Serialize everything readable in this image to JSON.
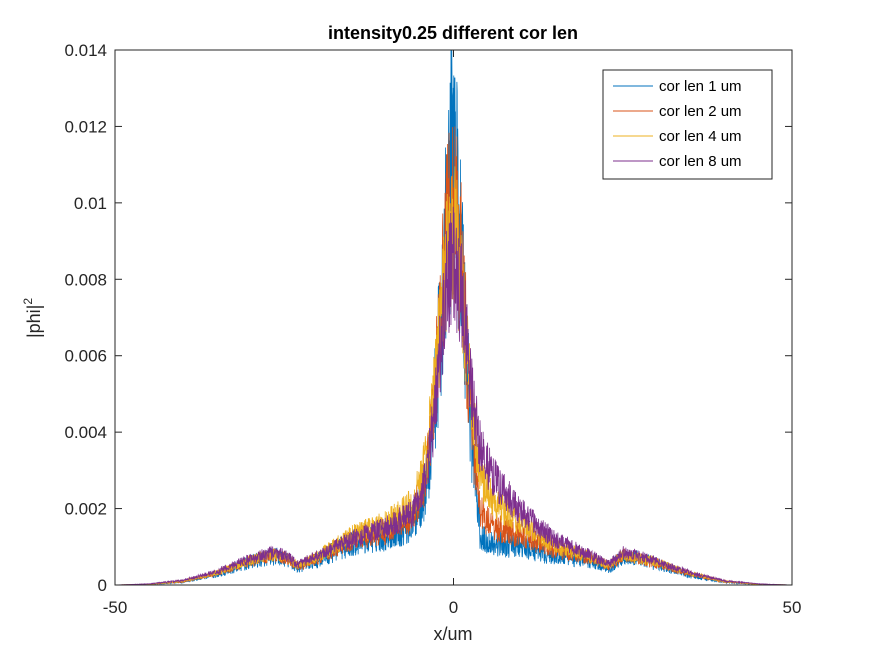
{
  "chart_data": {
    "type": "line",
    "title": "intensity0.25 different cor len",
    "xlabel": "x/um",
    "ylabel_main": "|phi|",
    "ylabel_sup": "2",
    "xlim": [
      -50,
      50
    ],
    "ylim": [
      0,
      0.014
    ],
    "xticks": [
      -50,
      0,
      50
    ],
    "xtick_labels": [
      "-50",
      "0",
      "50"
    ],
    "yticks": [
      0,
      0.002,
      0.004,
      0.006,
      0.008,
      0.01,
      0.012,
      0.014
    ],
    "ytick_labels": [
      "0",
      "0.002",
      "0.004",
      "0.006",
      "0.008",
      "0.01",
      "0.012",
      "0.014"
    ],
    "legend_position": "top-right",
    "grid": false,
    "series": [
      {
        "name": "cor len 1 um",
        "color": "#0072BD",
        "noise": 0.32,
        "x": [
          -50,
          -45,
          -40,
          -35,
          -30,
          -27,
          -25,
          -23,
          -20,
          -15,
          -10,
          -6,
          -4,
          -3,
          -2,
          -1,
          0,
          1,
          2,
          3,
          4,
          6,
          10,
          15,
          20,
          23,
          25,
          27,
          30,
          35,
          40,
          45,
          50
        ],
        "y": [
          0,
          2e-05,
          8e-05,
          0.00028,
          0.0006,
          0.00075,
          0.0007,
          0.00045,
          0.00065,
          0.0011,
          0.0013,
          0.0016,
          0.0026,
          0.0042,
          0.0065,
          0.0095,
          0.0113,
          0.0092,
          0.0058,
          0.0031,
          0.0012,
          0.0011,
          0.001,
          0.00075,
          0.00065,
          0.00045,
          0.00075,
          0.0007,
          0.00055,
          0.00025,
          8e-05,
          2e-05,
          0
        ]
      },
      {
        "name": "cor len 2 um",
        "color": "#D95319",
        "noise": 0.25,
        "x": [
          -50,
          -45,
          -40,
          -35,
          -30,
          -27,
          -25,
          -23,
          -20,
          -15,
          -10,
          -6,
          -4,
          -3,
          -2,
          -1,
          0,
          1,
          2,
          3,
          4,
          6,
          10,
          15,
          20,
          23,
          25,
          27,
          30,
          35,
          40,
          45,
          50
        ],
        "y": [
          0,
          2e-05,
          9e-05,
          0.0003,
          0.00062,
          0.00078,
          0.00072,
          0.00048,
          0.0007,
          0.0012,
          0.0014,
          0.0018,
          0.0029,
          0.0045,
          0.0068,
          0.0092,
          0.0102,
          0.0088,
          0.006,
          0.0035,
          0.0019,
          0.0015,
          0.0013,
          0.0009,
          0.00072,
          0.0005,
          0.00078,
          0.0007,
          0.00058,
          0.00028,
          9e-05,
          2e-05,
          0
        ]
      },
      {
        "name": "cor len 4 um",
        "color": "#EDB120",
        "noise": 0.22,
        "x": [
          -50,
          -45,
          -40,
          -35,
          -30,
          -27,
          -25,
          -23,
          -20,
          -15,
          -10,
          -6,
          -4,
          -3,
          -2,
          -1,
          0,
          1,
          2,
          3,
          4,
          6,
          10,
          15,
          20,
          23,
          25,
          27,
          30,
          35,
          40,
          45,
          50
        ],
        "y": [
          0,
          2e-05,
          0.0001,
          0.00032,
          0.00065,
          0.0008,
          0.00075,
          0.0005,
          0.00075,
          0.0013,
          0.0016,
          0.0021,
          0.0033,
          0.0048,
          0.0066,
          0.0085,
          0.0092,
          0.0082,
          0.0062,
          0.0042,
          0.0028,
          0.0022,
          0.0016,
          0.001,
          0.00075,
          0.00052,
          0.0008,
          0.00072,
          0.0006,
          0.0003,
          0.0001,
          2e-05,
          0
        ]
      },
      {
        "name": "cor len 8 um",
        "color": "#7E2F8E",
        "noise": 0.2,
        "x": [
          -50,
          -45,
          -40,
          -35,
          -30,
          -27,
          -25,
          -23,
          -20,
          -15,
          -10,
          -6,
          -4,
          -3,
          -2,
          -1,
          0,
          1,
          2,
          3,
          4,
          6,
          10,
          15,
          20,
          23,
          25,
          27,
          30,
          35,
          40,
          45,
          50
        ],
        "y": [
          0,
          3e-05,
          0.00012,
          0.00035,
          0.0007,
          0.00085,
          0.0008,
          0.00055,
          0.00078,
          0.0012,
          0.0015,
          0.0019,
          0.0028,
          0.0042,
          0.006,
          0.0078,
          0.0085,
          0.0078,
          0.0062,
          0.0047,
          0.0035,
          0.0028,
          0.0019,
          0.0012,
          0.0008,
          0.00055,
          0.00085,
          0.00078,
          0.00062,
          0.00032,
          0.00011,
          3e-05,
          0
        ]
      }
    ]
  }
}
